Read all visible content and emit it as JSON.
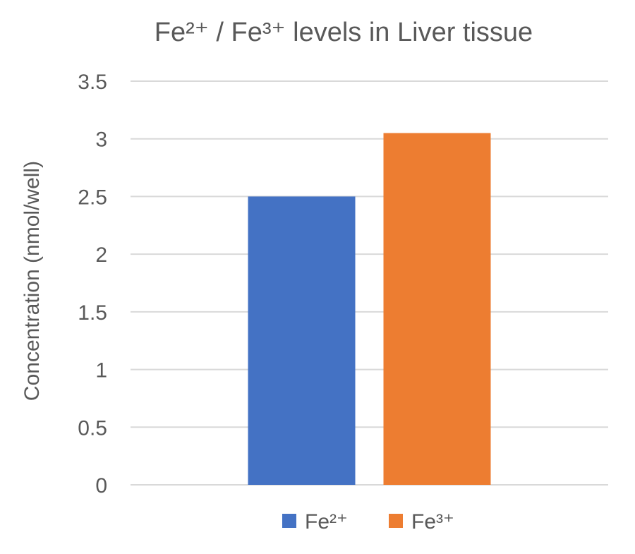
{
  "chart_data": {
    "type": "bar",
    "title": "Fe²⁺ / Fe³⁺ levels in Liver tissue",
    "xlabel": "",
    "ylabel": "Concentration (nmol/well)",
    "ylim": [
      0,
      3.5
    ],
    "yticks": [
      "0",
      "0.5",
      "1",
      "1.5",
      "2",
      "2.5",
      "3",
      "3.5"
    ],
    "grid": true,
    "legend_position": "bottom",
    "series": [
      {
        "name": "Fe²⁺",
        "values": [
          2.5
        ],
        "color": "#4472C4"
      },
      {
        "name": "Fe³⁺",
        "values": [
          3.05
        ],
        "color": "#ED7D31"
      }
    ]
  }
}
